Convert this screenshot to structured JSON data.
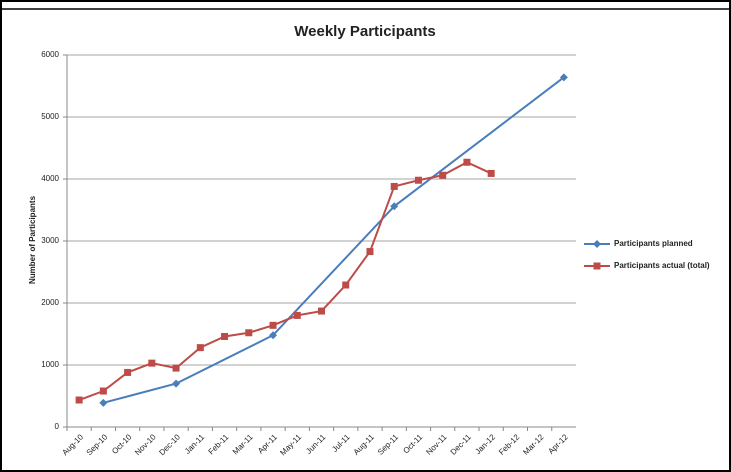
{
  "chart_data": {
    "type": "line",
    "title": "Weekly Participants",
    "y_label": "Number of Participants",
    "categories": [
      "Aug-10",
      "Sep-10",
      "Oct-10",
      "Nov-10",
      "Dec-10",
      "Jan-11",
      "Feb-11",
      "Mar-11",
      "Apr-11",
      "May-11",
      "Jun-11",
      "Jul-11",
      "Aug-11",
      "Sep-11",
      "Oct-11",
      "Nov-11",
      "Dec-11",
      "Jan-12",
      "Feb-12",
      "Mar-12",
      "Apr-12"
    ],
    "series": [
      {
        "name": "Participants planned",
        "color": "#4a7ebb",
        "marker": "diamond",
        "x": [
          "Sep-10",
          "Dec-10",
          "Apr-11",
          "Sep-11",
          "Apr-12"
        ],
        "values": [
          390,
          700,
          1480,
          3560,
          5640
        ]
      },
      {
        "name": "Participants actual (total)",
        "color": "#be4b48",
        "marker": "square",
        "x": [
          "Aug-10",
          "Sep-10",
          "Oct-10",
          "Nov-10",
          "Dec-10",
          "Jan-11",
          "Feb-11",
          "Mar-11",
          "Apr-11",
          "May-11",
          "Jun-11",
          "Jul-11",
          "Aug-11",
          "Sep-11",
          "Oct-11",
          "Nov-11",
          "Dec-11",
          "Jan-12"
        ],
        "values": [
          435,
          580,
          880,
          1030,
          950,
          1280,
          1460,
          1520,
          1640,
          1800,
          1870,
          2290,
          2830,
          3880,
          3980,
          4060,
          4270,
          4090
        ]
      }
    ],
    "ylim": [
      0,
      6000
    ],
    "yticks": [
      0,
      1000,
      2000,
      3000,
      4000,
      5000,
      6000
    ],
    "grid": true,
    "legend": "right"
  }
}
